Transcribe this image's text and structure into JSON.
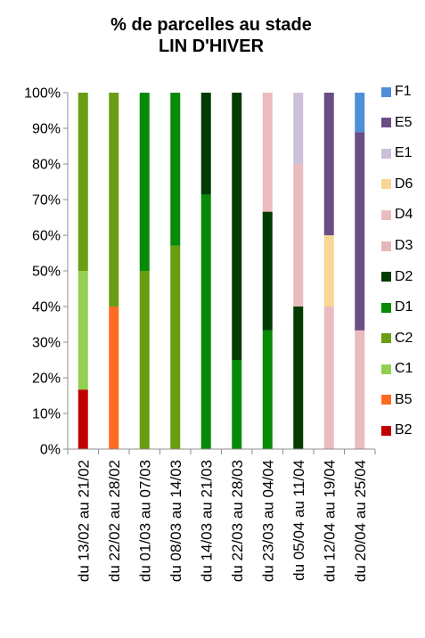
{
  "chart_data": {
    "type": "bar",
    "stacked": true,
    "title_line1": "% de parcelles au stade",
    "title_line2": "LIN D'HIVER",
    "xlabel": "",
    "ylabel": "",
    "ylim": [
      0,
      100
    ],
    "yticks": [
      "0%",
      "10%",
      "20%",
      "30%",
      "40%",
      "50%",
      "60%",
      "70%",
      "80%",
      "90%",
      "100%"
    ],
    "legend_position": "right",
    "grid": false,
    "categories": [
      "du 13/02 au 21/02",
      "du 22/02 au 28/02",
      "du 01/03 au 07/03",
      "du 08/03 au 14/03",
      "du 14/03 au 21/03",
      "du 22/03 au 28/03",
      "du 23/03 au 04/04",
      "du 05/04 au 11/04",
      "du 12/04 au 19/04",
      "du 20/04 au 25/04"
    ],
    "series": [
      {
        "name": "B2",
        "color": "#c00000",
        "values": [
          16.7,
          0,
          0,
          0,
          0,
          0,
          0,
          0,
          0,
          0
        ]
      },
      {
        "name": "B5",
        "color": "#ff6a21",
        "values": [
          0,
          40,
          0,
          0,
          0,
          0,
          0,
          0,
          0,
          0
        ]
      },
      {
        "name": "C1",
        "color": "#92d050",
        "values": [
          33.3,
          0,
          0,
          0,
          0,
          0,
          0,
          0,
          0,
          0
        ]
      },
      {
        "name": "C2",
        "color": "#6a9e12",
        "values": [
          50,
          60,
          50,
          57.1,
          0,
          0,
          0,
          0,
          0,
          0
        ]
      },
      {
        "name": "D1",
        "color": "#078a07",
        "values": [
          0,
          0,
          50,
          42.9,
          71.4,
          25,
          33.3,
          0,
          0,
          0
        ]
      },
      {
        "name": "D2",
        "color": "#033b03",
        "values": [
          0,
          0,
          0,
          0,
          28.6,
          75,
          33.3,
          40,
          0,
          0
        ]
      },
      {
        "name": "D3",
        "color": "#e6b8b8",
        "values": [
          0,
          0,
          0,
          0,
          0,
          0,
          0,
          0,
          0,
          0
        ]
      },
      {
        "name": "D4",
        "color": "#ebbcbf",
        "values": [
          0,
          0,
          0,
          0,
          0,
          0,
          33.4,
          40,
          40,
          33.3
        ]
      },
      {
        "name": "D6",
        "color": "#f7d793",
        "values": [
          0,
          0,
          0,
          0,
          0,
          0,
          0,
          0,
          20,
          0
        ]
      },
      {
        "name": "E1",
        "color": "#ccc0da",
        "values": [
          0,
          0,
          0,
          0,
          0,
          0,
          0,
          20,
          0,
          0
        ]
      },
      {
        "name": "E5",
        "color": "#6b4e86",
        "values": [
          0,
          0,
          0,
          0,
          0,
          0,
          0,
          0,
          40,
          55.6
        ]
      },
      {
        "name": "F1",
        "color": "#4f8fd8",
        "values": [
          0,
          0,
          0,
          0,
          0,
          0,
          0,
          0,
          0,
          11.1
        ]
      }
    ]
  }
}
